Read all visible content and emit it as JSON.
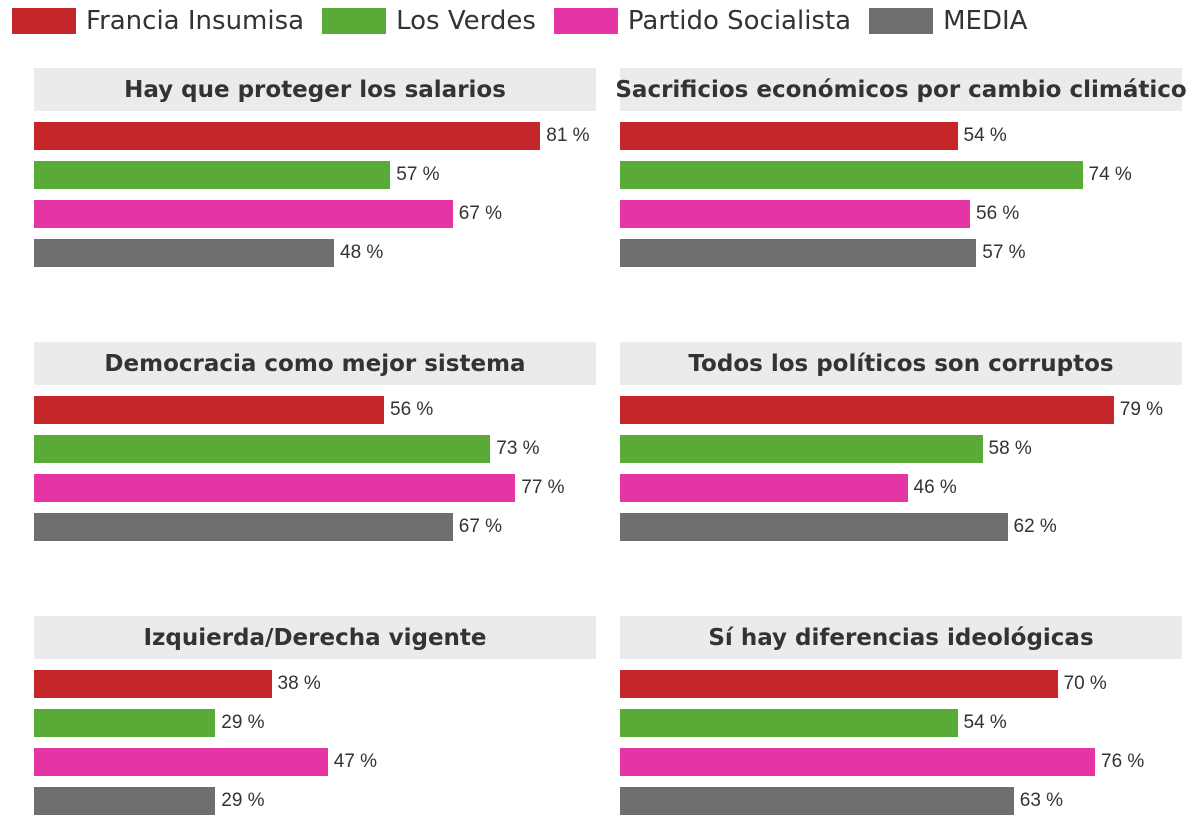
{
  "legend": [
    {
      "name": "Francia Insumisa",
      "color": "#c4262a"
    },
    {
      "name": "Los Verdes",
      "color": "#5aaa38"
    },
    {
      "name": "Partido Socialista",
      "color": "#e535a4"
    },
    {
      "name": "MEDIA",
      "color": "#6f6e70"
    }
  ],
  "value_suffix": " %",
  "chart_data": [
    {
      "type": "bar",
      "title": "Hay que proteger los salarios",
      "orientation": "horizontal",
      "series": [
        {
          "name": "Francia Insumisa",
          "value": 81
        },
        {
          "name": "Los Verdes",
          "value": 57
        },
        {
          "name": "Partido Socialista",
          "value": 67
        },
        {
          "name": "MEDIA",
          "value": 48
        }
      ],
      "xlim": [
        0,
        100
      ]
    },
    {
      "type": "bar",
      "title": "Sacrificios económicos por cambio climático",
      "orientation": "horizontal",
      "series": [
        {
          "name": "Francia Insumisa",
          "value": 54
        },
        {
          "name": "Los Verdes",
          "value": 74
        },
        {
          "name": "Partido Socialista",
          "value": 56
        },
        {
          "name": "MEDIA",
          "value": 57
        }
      ],
      "xlim": [
        0,
        100
      ]
    },
    {
      "type": "bar",
      "title": "Democracia como mejor sistema",
      "orientation": "horizontal",
      "series": [
        {
          "name": "Francia Insumisa",
          "value": 56
        },
        {
          "name": "Los Verdes",
          "value": 73
        },
        {
          "name": "Partido Socialista",
          "value": 77
        },
        {
          "name": "MEDIA",
          "value": 67
        }
      ],
      "xlim": [
        0,
        100
      ]
    },
    {
      "type": "bar",
      "title": "Todos los políticos son corruptos",
      "orientation": "horizontal",
      "series": [
        {
          "name": "Francia Insumisa",
          "value": 79
        },
        {
          "name": "Los Verdes",
          "value": 58
        },
        {
          "name": "Partido Socialista",
          "value": 46
        },
        {
          "name": "MEDIA",
          "value": 62
        }
      ],
      "xlim": [
        0,
        100
      ]
    },
    {
      "type": "bar",
      "title": "Izquierda/Derecha vigente",
      "orientation": "horizontal",
      "series": [
        {
          "name": "Francia Insumisa",
          "value": 38
        },
        {
          "name": "Los Verdes",
          "value": 29
        },
        {
          "name": "Partido Socialista",
          "value": 47
        },
        {
          "name": "MEDIA",
          "value": 29
        }
      ],
      "xlim": [
        0,
        100
      ]
    },
    {
      "type": "bar",
      "title": "Sí hay diferencias ideológicas",
      "orientation": "horizontal",
      "series": [
        {
          "name": "Francia Insumisa",
          "value": 70
        },
        {
          "name": "Los Verdes",
          "value": 54
        },
        {
          "name": "Partido Socialista",
          "value": 76
        },
        {
          "name": "MEDIA",
          "value": 63
        }
      ],
      "xlim": [
        0,
        100
      ]
    }
  ]
}
